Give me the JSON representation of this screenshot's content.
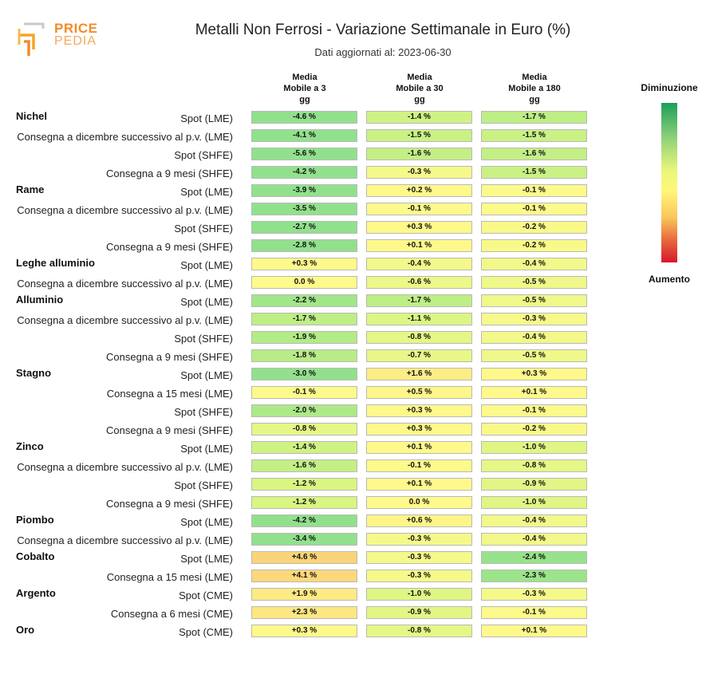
{
  "logo": {
    "word1": "PRICE",
    "word2": "PEDIA"
  },
  "chart_data": {
    "type": "heatmap",
    "title": "Metalli Non Ferrosi - Variazione Settimanale in Euro (%)",
    "subtitle": "Dati aggiornati al: 2023-06-30",
    "columns": [
      {
        "l1": "Media",
        "l2": "Mobile a 3",
        "l3": "gg"
      },
      {
        "l1": "Media",
        "l2": "Mobile a 30",
        "l3": "gg"
      },
      {
        "l1": "Media",
        "l2": "Mobile a 180",
        "l3": "gg"
      }
    ],
    "legend": {
      "top": "Diminuzione",
      "bottom": "Aumento"
    },
    "groups": [
      {
        "metal": "Nichel",
        "rows": [
          {
            "label": "Spot (LME)",
            "values": [
              -4.6,
              -1.4,
              -1.7
            ]
          },
          {
            "label": "Consegna a dicembre successivo al p.v. (LME)",
            "values": [
              -4.1,
              -1.5,
              -1.5
            ]
          },
          {
            "label": "Spot (SHFE)",
            "values": [
              -5.6,
              -1.6,
              -1.6
            ]
          },
          {
            "label": "Consegna a 9 mesi (SHFE)",
            "values": [
              -4.2,
              -0.3,
              -1.5
            ]
          }
        ]
      },
      {
        "metal": "Rame",
        "rows": [
          {
            "label": "Spot (LME)",
            "values": [
              -3.9,
              0.2,
              -0.1
            ]
          },
          {
            "label": "Consegna a dicembre successivo al p.v. (LME)",
            "values": [
              -3.5,
              -0.1,
              -0.1
            ]
          },
          {
            "label": "Spot (SHFE)",
            "values": [
              -2.7,
              0.3,
              -0.2
            ]
          },
          {
            "label": "Consegna a 9 mesi (SHFE)",
            "values": [
              -2.8,
              0.1,
              -0.2
            ]
          }
        ]
      },
      {
        "metal": "Leghe alluminio",
        "rows": [
          {
            "label": "Spot (LME)",
            "values": [
              0.3,
              -0.4,
              -0.4
            ]
          },
          {
            "label": "Consegna a dicembre successivo al p.v. (LME)",
            "values": [
              0.0,
              -0.6,
              -0.5
            ]
          }
        ]
      },
      {
        "metal": "Alluminio",
        "rows": [
          {
            "label": "Spot (LME)",
            "values": [
              -2.2,
              -1.7,
              -0.5
            ]
          },
          {
            "label": "Consegna a dicembre successivo al p.v. (LME)",
            "values": [
              -1.7,
              -1.1,
              -0.3
            ]
          },
          {
            "label": "Spot (SHFE)",
            "values": [
              -1.9,
              -0.8,
              -0.4
            ]
          },
          {
            "label": "Consegna a 9 mesi (SHFE)",
            "values": [
              -1.8,
              -0.7,
              -0.5
            ]
          }
        ]
      },
      {
        "metal": "Stagno",
        "rows": [
          {
            "label": "Spot (LME)",
            "values": [
              -3.0,
              1.6,
              0.3
            ]
          },
          {
            "label": "Consegna a 15 mesi (LME)",
            "values": [
              -0.1,
              0.5,
              0.1
            ]
          },
          {
            "label": "Spot (SHFE)",
            "values": [
              -2.0,
              0.3,
              -0.1
            ]
          },
          {
            "label": "Consegna a 9 mesi (SHFE)",
            "values": [
              -0.8,
              0.3,
              -0.2
            ]
          }
        ]
      },
      {
        "metal": "Zinco",
        "rows": [
          {
            "label": "Spot (LME)",
            "values": [
              -1.4,
              0.1,
              -1.0
            ]
          },
          {
            "label": "Consegna a dicembre successivo al p.v. (LME)",
            "values": [
              -1.6,
              -0.1,
              -0.8
            ]
          },
          {
            "label": "Spot (SHFE)",
            "values": [
              -1.2,
              0.1,
              -0.9
            ]
          },
          {
            "label": "Consegna a 9 mesi (SHFE)",
            "values": [
              -1.2,
              0.0,
              -1.0
            ]
          }
        ]
      },
      {
        "metal": "Piombo",
        "rows": [
          {
            "label": "Spot (LME)",
            "values": [
              -4.2,
              0.6,
              -0.4
            ]
          },
          {
            "label": "Consegna a dicembre successivo al p.v. (LME)",
            "values": [
              -3.4,
              -0.3,
              -0.4
            ]
          }
        ]
      },
      {
        "metal": "Cobalto",
        "rows": [
          {
            "label": "Spot (LME)",
            "values": [
              4.6,
              -0.3,
              -2.4
            ]
          },
          {
            "label": "Consegna a 15 mesi (LME)",
            "values": [
              4.1,
              -0.3,
              -2.3
            ]
          }
        ]
      },
      {
        "metal": "Argento",
        "rows": [
          {
            "label": "Spot (CME)",
            "values": [
              1.9,
              -1.0,
              -0.3
            ]
          },
          {
            "label": "Consegna a 6 mesi (CME)",
            "values": [
              2.3,
              -0.9,
              -0.1
            ]
          }
        ]
      },
      {
        "metal": "Oro",
        "rows": [
          {
            "label": "Spot (CME)",
            "values": [
              0.3,
              -0.8,
              0.1
            ]
          }
        ]
      }
    ]
  }
}
